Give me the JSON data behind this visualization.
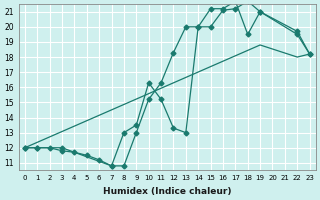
{
  "xlabel": "Humidex (Indice chaleur)",
  "ylabel": "",
  "bg_color": "#cff0ee",
  "grid_color": "#ffffff",
  "line_color": "#1a7a6e",
  "xlim": [
    -0.5,
    23.5
  ],
  "ylim": [
    10.5,
    21.5
  ],
  "xticks": [
    0,
    1,
    2,
    3,
    4,
    5,
    6,
    7,
    8,
    9,
    10,
    11,
    12,
    13,
    14,
    15,
    16,
    17,
    18,
    19,
    20,
    21,
    22,
    23
  ],
  "yticks": [
    11,
    12,
    13,
    14,
    15,
    16,
    17,
    18,
    19,
    20,
    21
  ],
  "line1_x": [
    0,
    1,
    2,
    3,
    4,
    5,
    6,
    7,
    8,
    9,
    10,
    11,
    12,
    13,
    14,
    15,
    16,
    17,
    18,
    19,
    22,
    23
  ],
  "line1_y": [
    12,
    12,
    12,
    11.8,
    11.7,
    11.5,
    11.2,
    10.8,
    10.8,
    13.0,
    15.2,
    16.3,
    18.3,
    20.0,
    20.0,
    20.0,
    21.1,
    21.2,
    21.7,
    21.0,
    19.7,
    18.2
  ],
  "line2_x": [
    0,
    1,
    3,
    7,
    8,
    9,
    10,
    11,
    12,
    13,
    14,
    15,
    16,
    17,
    18,
    19,
    22,
    23
  ],
  "line2_y": [
    12,
    12,
    12,
    10.8,
    13.0,
    13.5,
    16.3,
    15.2,
    13.3,
    13.0,
    20.0,
    21.2,
    21.2,
    21.7,
    19.5,
    21.0,
    19.5,
    18.2
  ],
  "line3_x": [
    0,
    19,
    22,
    23
  ],
  "line3_y": [
    12,
    18.8,
    18.0,
    18.2
  ]
}
